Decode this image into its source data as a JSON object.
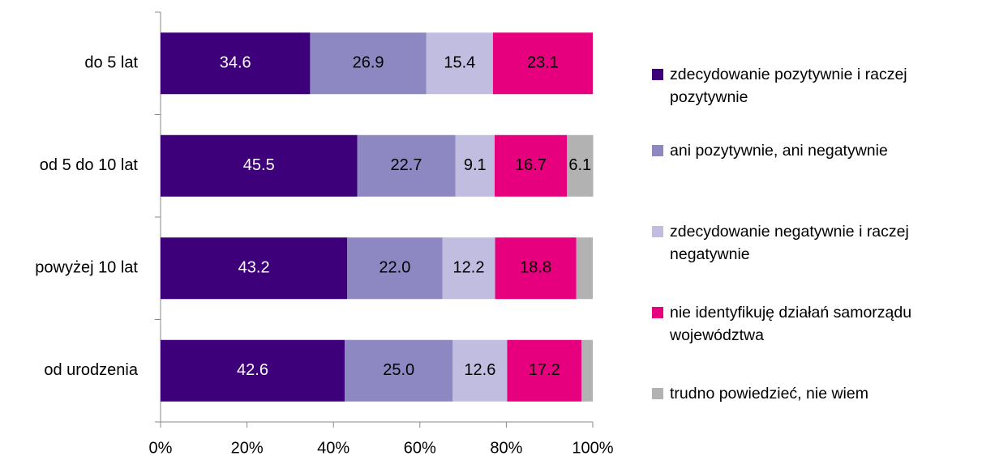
{
  "chart_data": {
    "type": "stacked_bar_horizontal",
    "categories": [
      "do 5 lat",
      "od 5 do 10 lat",
      "powyżej 10 lat",
      "od urodzenia"
    ],
    "series": [
      {
        "name": "zdecydowanie pozytywnie i raczej pozytywnie",
        "color": "#3d007a",
        "values": [
          34.6,
          45.5,
          43.2,
          42.6
        ]
      },
      {
        "name": "ani pozytywnie, ani negatywnie",
        "color": "#8d88c1",
        "values": [
          26.9,
          22.7,
          22,
          25
        ],
        "value_labels": [
          "26.9",
          "22.7",
          "22.0",
          "25.0"
        ]
      },
      {
        "name": "zdecydowanie negatywnie i raczej negatywnie",
        "color": "#c1bde0",
        "values": [
          15.4,
          9.1,
          12.2,
          12.6
        ]
      },
      {
        "name": "nie identyfikuję działań samorządu województwa",
        "color": "#e6007e",
        "values": [
          23.1,
          16.7,
          18.8,
          17.2
        ]
      },
      {
        "name": "trudno powiedzieć, nie wiem",
        "color": "#b2b2b2",
        "values": [
          0,
          6.1,
          3.8,
          2.6
        ],
        "value_labels": [
          null,
          "6.1",
          null,
          null
        ]
      }
    ],
    "xlim": [
      0,
      100
    ],
    "xticks": [
      {
        "value": 0,
        "label": "0%"
      },
      {
        "value": 20,
        "label": "20%"
      },
      {
        "value": 40,
        "label": "40%"
      },
      {
        "value": 60,
        "label": "60%"
      },
      {
        "value": 80,
        "label": "80%"
      },
      {
        "value": 100,
        "label": "100%"
      }
    ],
    "legend": "right"
  }
}
